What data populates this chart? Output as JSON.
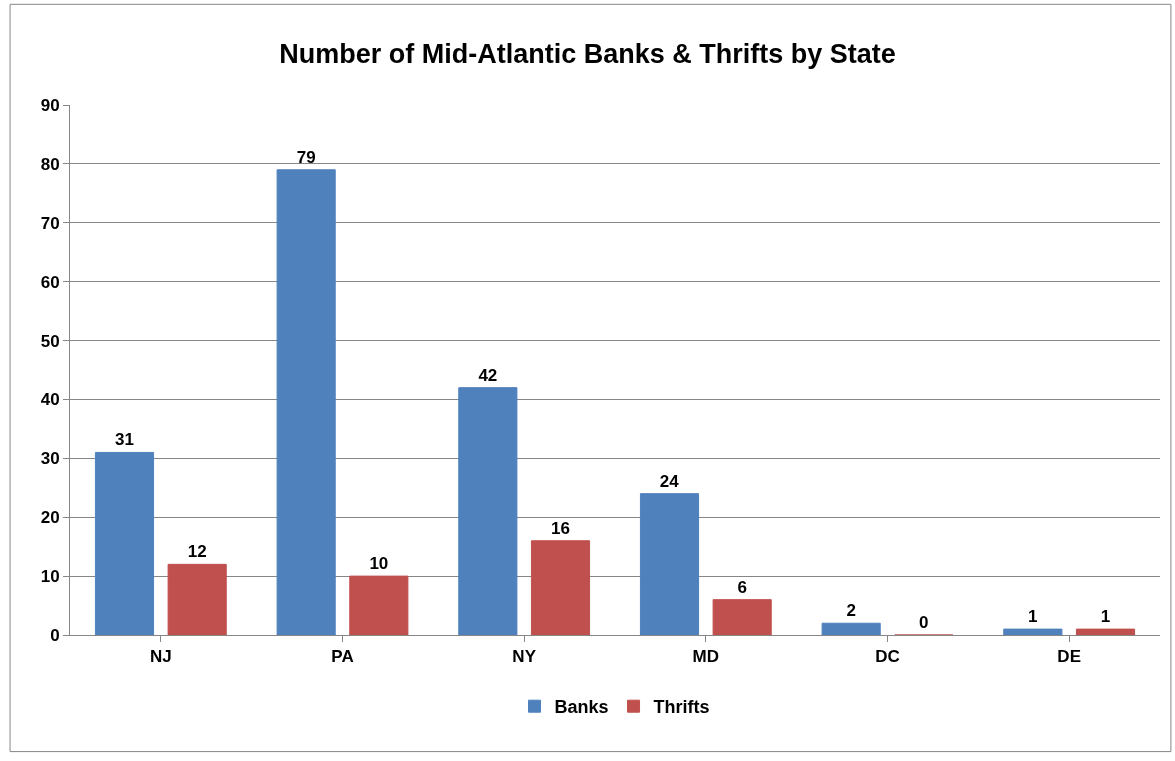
{
  "chart_data": {
    "type": "bar",
    "title": "Number of Mid-Atlantic Banks & Thrifts by State",
    "categories": [
      "NJ",
      "PA",
      "NY",
      "MD",
      "DC",
      "DE"
    ],
    "series": [
      {
        "name": "Banks",
        "color": "#4f81bd",
        "values": [
          31,
          79,
          42,
          24,
          2,
          1
        ]
      },
      {
        "name": "Thrifts",
        "color": "#c0504d",
        "values": [
          12,
          10,
          16,
          6,
          0,
          1
        ]
      }
    ],
    "ylim": [
      0,
      90
    ],
    "yticks": [
      0,
      10,
      20,
      30,
      40,
      50,
      60,
      70,
      80,
      90
    ],
    "grid": "y",
    "legend": "bottom",
    "data_labels": true
  }
}
